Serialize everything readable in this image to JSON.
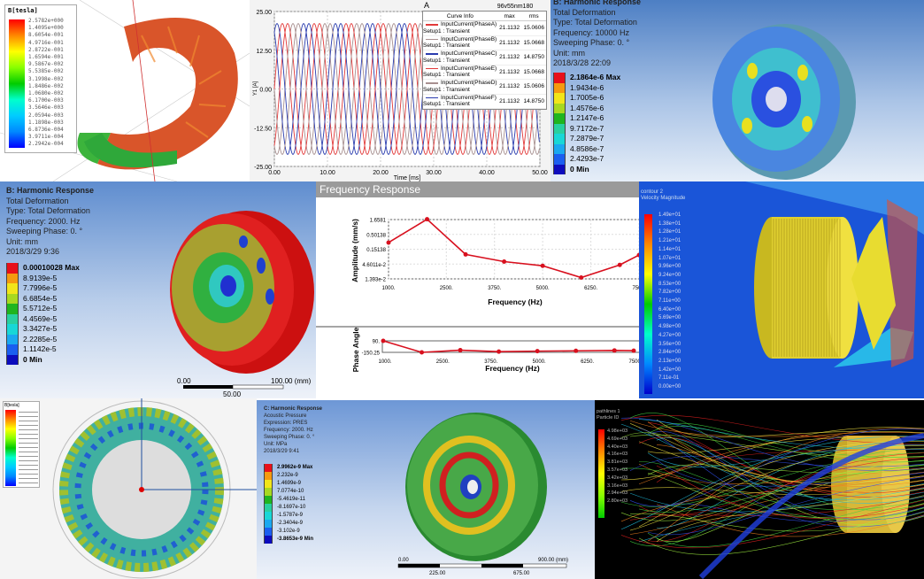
{
  "colors": {
    "red": "#e8101a",
    "orange": "#f59a10",
    "yellow": "#f2e51a",
    "green": "#1fb51f",
    "cyan": "#18d7d7",
    "blue": "#1a5ef0",
    "navy": "#0b0bbd",
    "plot_red": "#d8101e"
  },
  "panel_coil": {
    "legend_title": "B[tesla]",
    "values": [
      "2.5782e+000",
      "1.4095e+000",
      "8.6054e-001",
      "4.9716e-001",
      "2.8722e-001",
      "1.6594e-001",
      "9.5867e-002",
      "5.5385e-002",
      "3.1998e-002",
      "1.8486e-002",
      "1.0680e-002",
      "6.1700e-003",
      "3.5646e-003",
      "2.0594e-003",
      "1.1898e-003",
      "6.8736e-004",
      "3.9711e-004",
      "2.2942e-004"
    ]
  },
  "chart_data": [
    {
      "type": "line",
      "title": "A",
      "subtitle": "96v55nm180",
      "xlabel": "Time [ms]",
      "ylabel": "Y1 [A]",
      "xlim": [
        0,
        50
      ],
      "ylim": [
        -25,
        25
      ],
      "xticks": [
        "0.00",
        "10.00",
        "20.00",
        "30.00",
        "40.00",
        "50.00"
      ],
      "yticks": [
        "25.00",
        "12.50",
        "0.00",
        "-12.50",
        "-25.00"
      ],
      "grid": true,
      "legend_placement": "top-right",
      "period_ms": 6,
      "legend_headers": [
        "Curve Info",
        "max",
        "rms"
      ],
      "series": [
        {
          "name": "InputCurrent(PhaseA)",
          "setup": "Setup1 : Transient",
          "max": "21.1132",
          "rms": "15.0606",
          "color": "#e23a3a",
          "amplitude": 21.1132,
          "phase_deg": 0
        },
        {
          "name": "InputCurrent(PhaseB)",
          "setup": "Setup1 : Transient",
          "max": "21.1132",
          "rms": "15.0668",
          "color": "#a89090",
          "amplitude": 21.1132,
          "phase_deg": 120
        },
        {
          "name": "InputCurrent(PhaseC)",
          "setup": "Setup1 : Transient",
          "max": "21.1132",
          "rms": "14.8750",
          "color": "#2a3cae",
          "amplitude": 21.1132,
          "phase_deg": 240
        },
        {
          "name": "InputCurrent(PhaseE)",
          "setup": "Setup1 : Transient",
          "max": "21.1132",
          "rms": "15.0668",
          "color": "#e23a3a",
          "amplitude": 21.1132,
          "phase_deg": 60
        },
        {
          "name": "InputCurrent(PhaseD)",
          "setup": "Setup1 : Transient",
          "max": "21.1132",
          "rms": "15.0606",
          "color": "#a89090",
          "amplitude": 21.1132,
          "phase_deg": 180
        },
        {
          "name": "InputCurrent(PhaseF)",
          "setup": "Setup1 : Transient",
          "max": "21.1132",
          "rms": "14.8750",
          "color": "#2a3cae",
          "amplitude": 21.1132,
          "phase_deg": 300
        }
      ]
    },
    {
      "type": "line",
      "title": "Frequency Response",
      "xlabel": "Frequency (Hz)",
      "ylabel": "Amplitude (mm/s)",
      "yscale": "log",
      "xlim": [
        1000,
        7500
      ],
      "ylim": [
        0.01393,
        1.6581
      ],
      "xticks": [
        1000,
        2500,
        3750,
        5000,
        6250,
        7500
      ],
      "xtick_labels": [
        "1000.",
        "2500.",
        "3750.",
        "5000.",
        "6250.",
        "7500."
      ],
      "yticks": [
        1.6581,
        0.50138,
        0.15138,
        0.046011,
        0.01393
      ],
      "ytick_labels": [
        "1.6581",
        "0.50138",
        "0.15138",
        "4.6011e-2",
        "1.393e-2"
      ],
      "x": [
        1000,
        2000,
        3000,
        4000,
        5000,
        6000,
        7000,
        7500
      ],
      "values": [
        0.26,
        1.7,
        0.1,
        0.056,
        0.04,
        0.0155,
        0.043,
        0.095
      ],
      "color": "#d8101e",
      "grid": true
    },
    {
      "type": "line",
      "xlabel": "Frequency (Hz)",
      "ylabel": "Phase Angle",
      "xlim": [
        1000,
        7500
      ],
      "ylim": [
        -150.25,
        90
      ],
      "xtick_labels": [
        "1000.",
        "2500.",
        "3750.",
        "5000.",
        "6250.",
        "7500."
      ],
      "ytick_labels": [
        "90.",
        "-150.25"
      ],
      "x": [
        1000,
        2000,
        3000,
        4000,
        5000,
        6000,
        7000,
        7500
      ],
      "values": [
        90,
        -150,
        -105,
        -135,
        -125,
        -118,
        -110,
        -115
      ],
      "color": "#d8101e"
    }
  ],
  "panel_wheel_10k": {
    "info": [
      "B: Harmonic Response",
      "Total Deformation",
      "Type: Total Deformation",
      "Frequency: 10000 Hz",
      "Sweeping Phase: 0. °",
      "Unit: mm",
      "2018/3/28 22:09"
    ],
    "legend": [
      "2.1864e-6 Max",
      "1.9434e-6",
      "1.7005e-6",
      "1.4576e-6",
      "1.2147e-6",
      "9.7172e-7",
      "7.2879e-7",
      "4.8586e-7",
      "2.4293e-7",
      "0 Min"
    ]
  },
  "panel_wheel_2k": {
    "info": [
      "B: Harmonic Response",
      "Total Deformation",
      "Type: Total Deformation",
      "Frequency: 2000. Hz",
      "Sweeping Phase: 0. °",
      "Unit: mm",
      "2018/3/29 9:36"
    ],
    "legend": [
      "0.00010028 Max",
      "8.9139e-5",
      "7.7996e-5",
      "6.6854e-5",
      "5.5712e-5",
      "4.4569e-5",
      "3.3427e-5",
      "2.2285e-5",
      "1.1142e-5",
      "0 Min"
    ],
    "scale": {
      "start": "0.00",
      "end": "100.00 (mm)",
      "mid": "50.00"
    }
  },
  "panel_cfd": {
    "title": "contour 2",
    "subtitle": "Velocity Magnitude",
    "legend": [
      "1.49e+01",
      "1.38e+01",
      "1.28e+01",
      "1.21e+01",
      "1.14e+01",
      "1.07e+01",
      "9.96e+00",
      "9.24e+00",
      "8.53e+00",
      "7.82e+00",
      "7.11e+00",
      "6.40e+00",
      "5.69e+00",
      "4.98e+00",
      "4.27e+00",
      "3.56e+00",
      "2.84e+00",
      "2.13e+00",
      "1.42e+00",
      "7.11e-01",
      "0.00e+00"
    ]
  },
  "panel_ring": {
    "legend_title": "B[tesla]"
  },
  "panel_disc": {
    "info": [
      "C: Harmonic Response",
      "Acoustic Pressure",
      "Expression: PRES",
      "Frequency: 2000. Hz",
      "Sweeping Phase: 0. °",
      "Unit: MPa",
      "2018/3/29 9:41"
    ],
    "legend": [
      "2.9962e-9 Max",
      "2.232e-9",
      "1.4699e-9",
      "7.0774e-10",
      "-5.4619e-11",
      "-8.1697e-10",
      "-1.5787e-9",
      "-2.3404e-9",
      "-3.102e-9",
      "-3.8653e-9 Min"
    ],
    "scale": {
      "start": "0.00",
      "end": "900.00 (mm)",
      "q1": "225.00",
      "q3": "675.00"
    }
  },
  "panel_pathlines": {
    "title": "pathlines 1",
    "subtitle": "Particle ID",
    "legend": [
      "4.98e+03",
      "4.69e+03",
      "4.40e+03",
      "4.16e+03",
      "3.81e+03",
      "3.57e+03",
      "3.42e+03",
      "3.16e+03",
      "2.94e+03",
      "2.80e+03"
    ]
  }
}
